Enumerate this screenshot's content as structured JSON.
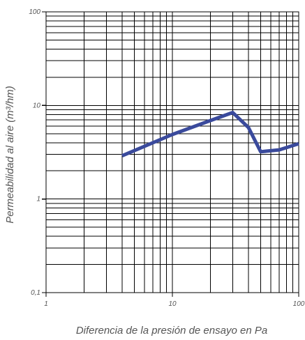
{
  "chart_data": {
    "type": "line",
    "title": "",
    "xlabel": "Diferencia de la presión de ensayo en Pa",
    "ylabel": "Permeabilidad al aire (m³/hm)",
    "xscale": "log",
    "yscale": "log",
    "xlim": [
      1,
      100
    ],
    "ylim": [
      0.1,
      100
    ],
    "x_ticks": [
      {
        "value": 1,
        "label": "1"
      },
      {
        "value": 10,
        "label": "10"
      },
      {
        "value": 100,
        "label": "100"
      }
    ],
    "y_ticks": [
      {
        "value": 0.1,
        "label": "0,1"
      },
      {
        "value": 1,
        "label": "1"
      },
      {
        "value": 10,
        "label": "10"
      },
      {
        "value": 100,
        "label": "100"
      }
    ],
    "grid": true,
    "legend": "none",
    "series": [
      {
        "color": "#3a4a9c",
        "x": [
          4,
          10,
          20,
          30,
          40,
          50,
          70,
          100
        ],
        "y": [
          2.9,
          4.9,
          6.9,
          8.4,
          5.8,
          3.2,
          3.35,
          3.9
        ]
      }
    ]
  }
}
